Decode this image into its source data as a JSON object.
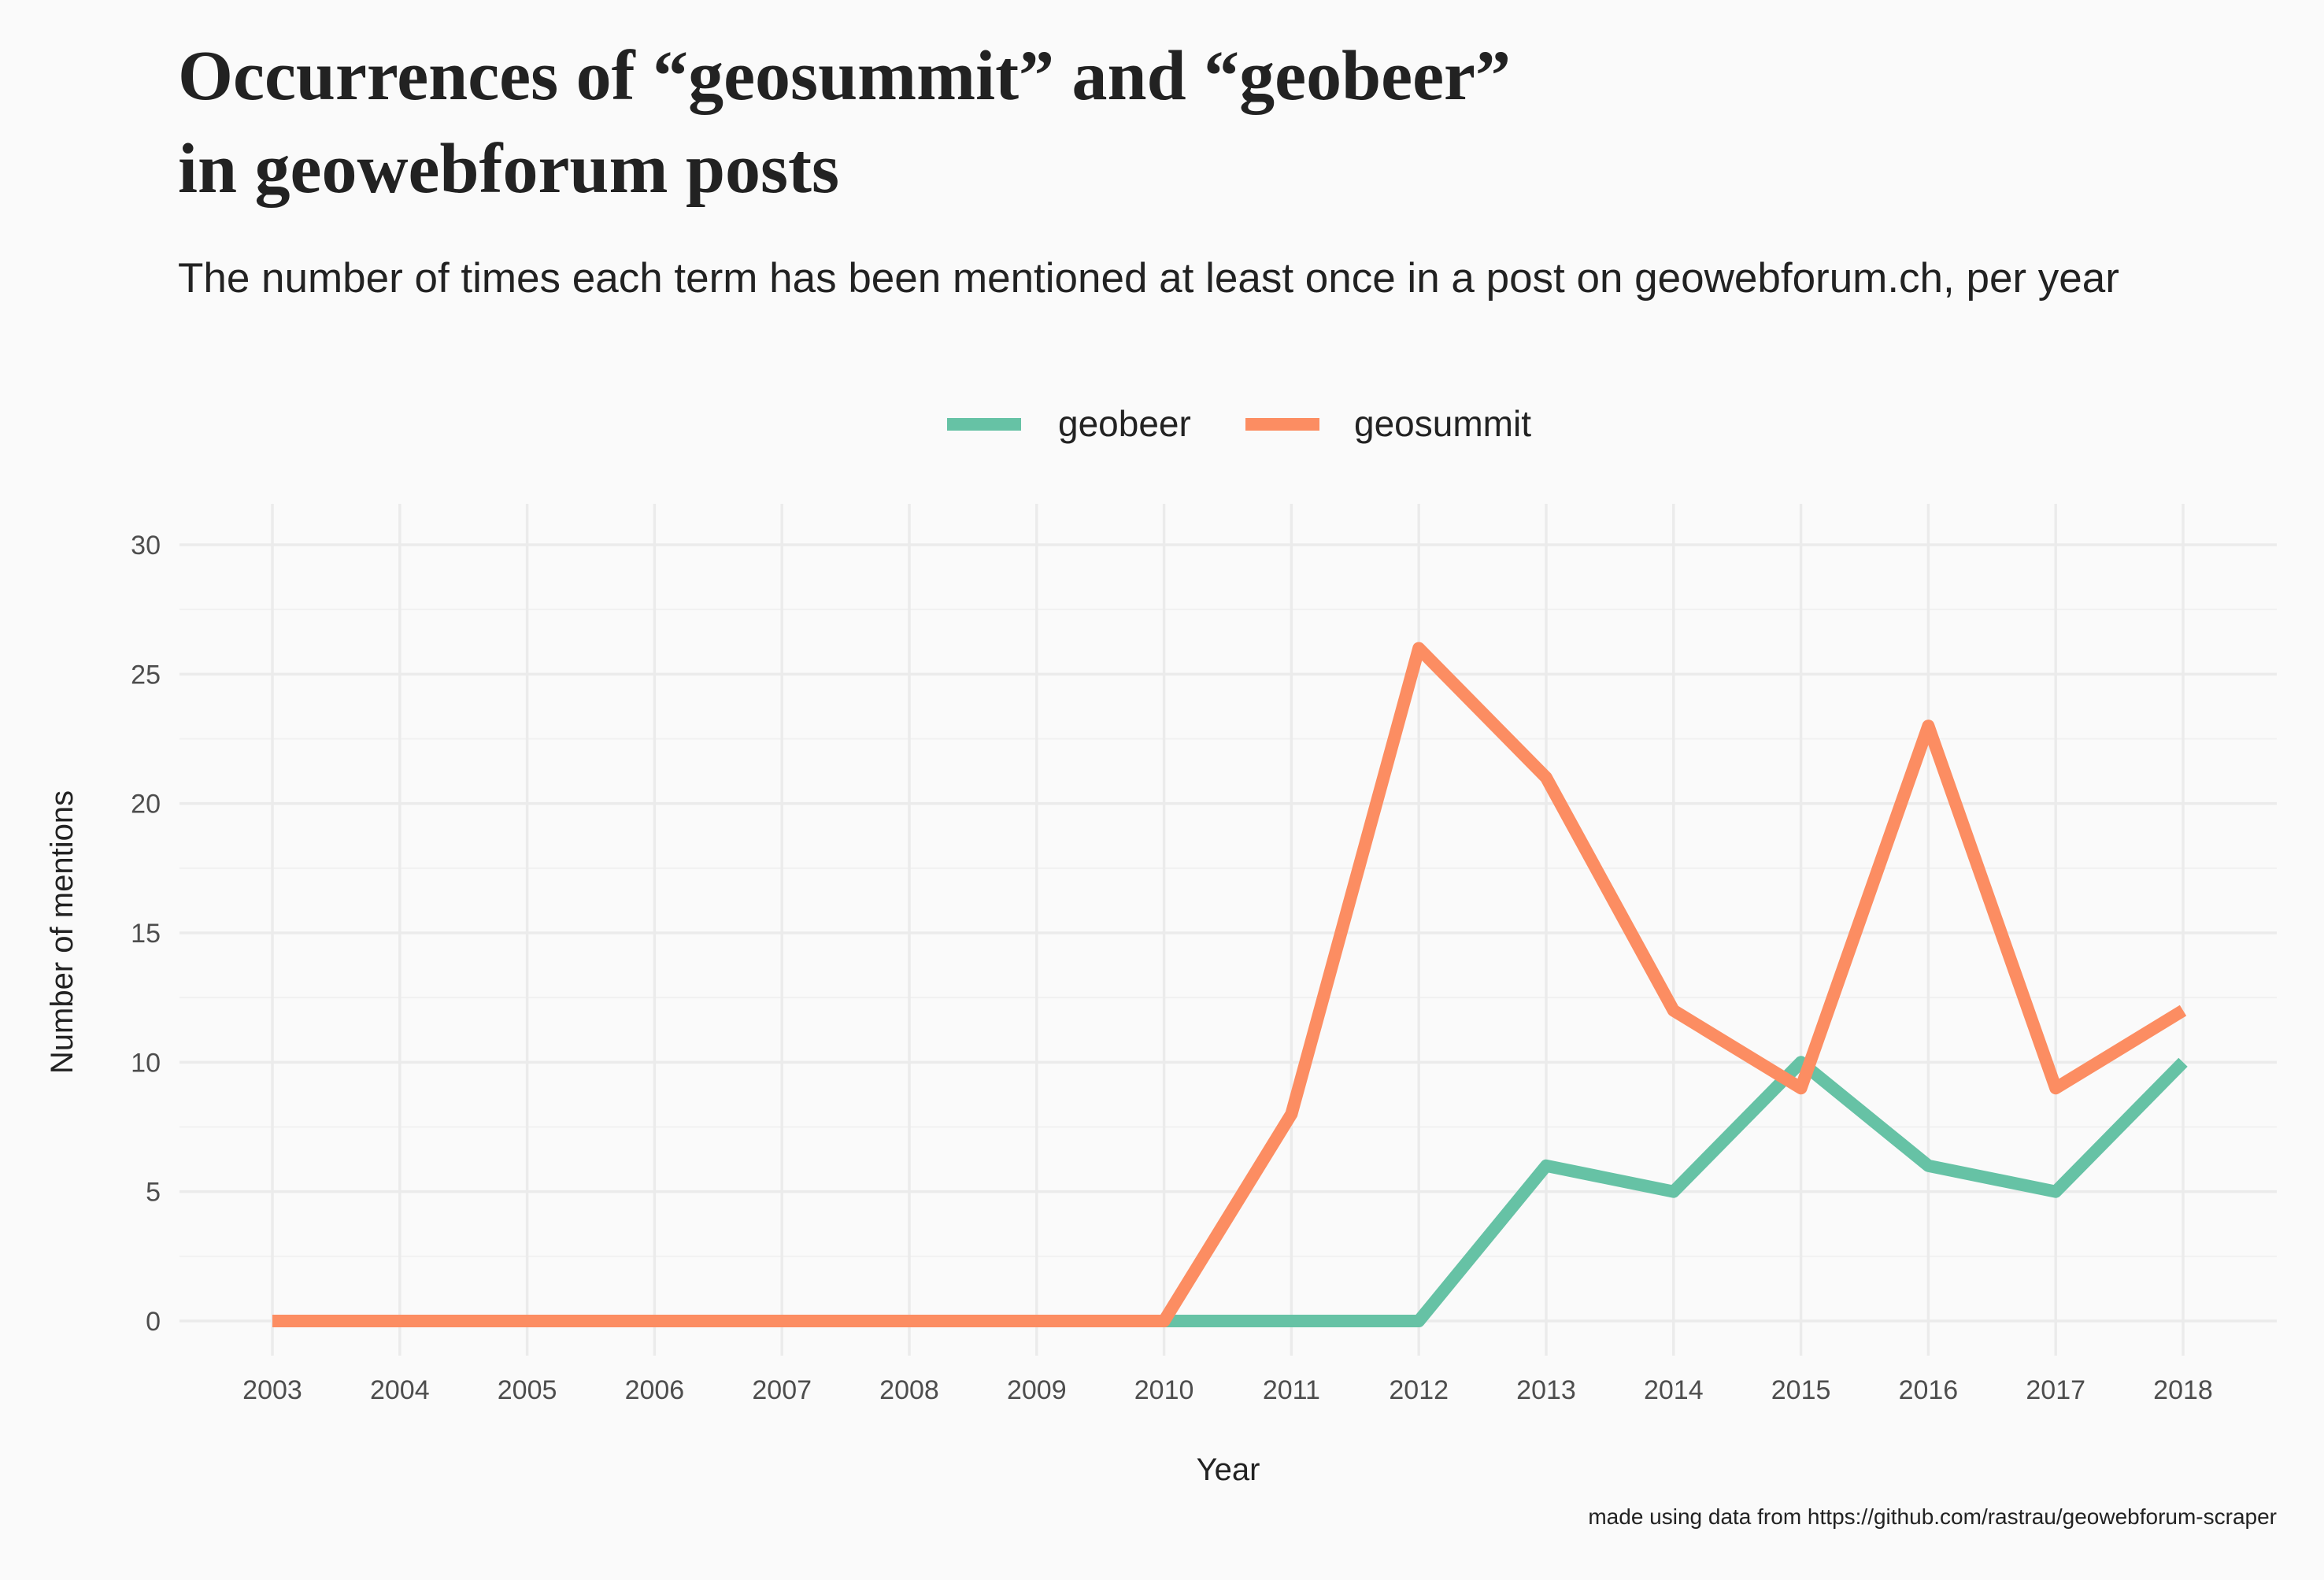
{
  "title_lines": [
    "Occurrences of “geosummit” and “geobeer”",
    "in geowebforum posts"
  ],
  "subtitle": "The number of times each term has been mentioned at least once in a post on geowebforum.ch, per year",
  "caption": "made using data from https://github.com/rastrau/geowebforum-scraper",
  "chart_data": {
    "type": "line",
    "x": [
      2003,
      2004,
      2005,
      2006,
      2007,
      2008,
      2009,
      2010,
      2011,
      2012,
      2013,
      2014,
      2015,
      2016,
      2017,
      2018
    ],
    "series": [
      {
        "name": "geobeer",
        "color": "#66c2a5",
        "values": [
          0,
          0,
          0,
          0,
          0,
          0,
          0,
          0,
          0,
          0,
          6,
          5,
          10,
          6,
          5,
          10
        ]
      },
      {
        "name": "geosummit",
        "color": "#fc8d62",
        "values": [
          0,
          0,
          0,
          0,
          0,
          0,
          0,
          0,
          8,
          26,
          21,
          12,
          9,
          23,
          9,
          12
        ]
      }
    ],
    "xlabel": "Year",
    "ylabel": "Number of mentions",
    "ylim": [
      0,
      30
    ],
    "yticks": [
      0,
      5,
      10,
      15,
      20,
      25,
      30
    ],
    "grid": true,
    "legend": "top-center"
  }
}
